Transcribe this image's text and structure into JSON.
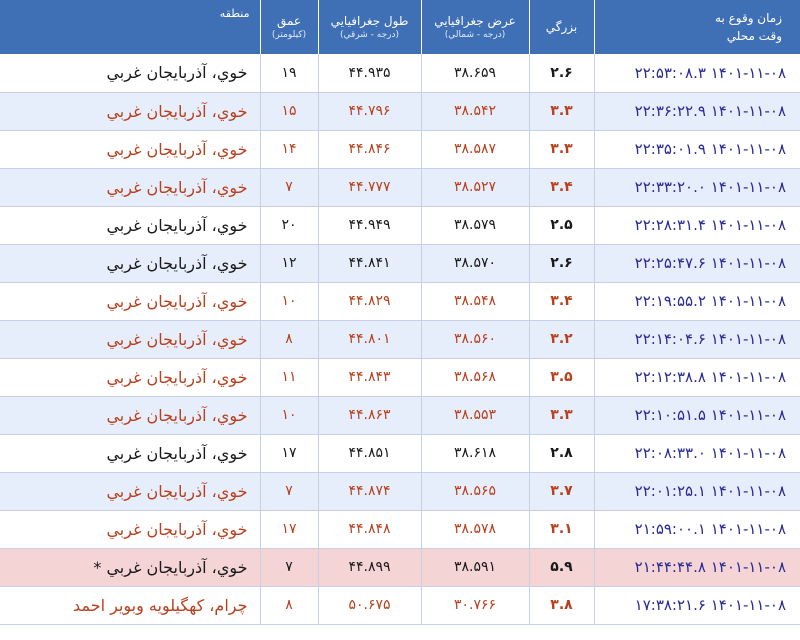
{
  "columns": {
    "time": {
      "main": "زمان وقوع به",
      "main2": "وقت محلي"
    },
    "magnitude": {
      "main": "بزرگي"
    },
    "latitude": {
      "main": "عرض جغرافيايي",
      "sub": "(درجه - شمالي)"
    },
    "longitude": {
      "main": "طول جغرافيايي",
      "sub": "(درجه - شرقي)"
    },
    "depth": {
      "main": "عمق",
      "sub": "(كيلومتر)"
    },
    "region": {
      "main": "منطقه"
    }
  },
  "rows": [
    {
      "time": "۱۴۰۱-۱۱-۰۸ ۲۲:۵۳:۰۸.۳",
      "mag": "۲.۶",
      "lat": "۳۸.۶۵۹",
      "lon": "۴۴.۹۳۵",
      "depth": "۱۹",
      "region": "خوي، آذربايجان غربي"
    },
    {
      "time": "۱۴۰۱-۱۱-۰۸ ۲۲:۳۶:۲۲.۹",
      "mag": "۳.۳",
      "lat": "۳۸.۵۴۲",
      "lon": "۴۴.۷۹۶",
      "depth": "۱۵",
      "region": "خوي، آذربايجان غربي"
    },
    {
      "time": "۱۴۰۱-۱۱-۰۸ ۲۲:۳۵:۰۱.۹",
      "mag": "۳.۳",
      "lat": "۳۸.۵۸۷",
      "lon": "۴۴.۸۴۶",
      "depth": "۱۴",
      "region": "خوي، آذربايجان غربي"
    },
    {
      "time": "۱۴۰۱-۱۱-۰۸ ۲۲:۳۳:۲۰.۰",
      "mag": "۳.۴",
      "lat": "۳۸.۵۲۷",
      "lon": "۴۴.۷۷۷",
      "depth": "۷",
      "region": "خوي، آذربايجان غربي"
    },
    {
      "time": "۱۴۰۱-۱۱-۰۸ ۲۲:۲۸:۳۱.۴",
      "mag": "۲.۵",
      "lat": "۳۸.۵۷۹",
      "lon": "۴۴.۹۴۹",
      "depth": "۲۰",
      "region": "خوي، آذربايجان غربي"
    },
    {
      "time": "۱۴۰۱-۱۱-۰۸ ۲۲:۲۵:۴۷.۶",
      "mag": "۲.۶",
      "lat": "۳۸.۵۷۰",
      "lon": "۴۴.۸۴۱",
      "depth": "۱۲",
      "region": "خوي، آذربايجان غربي"
    },
    {
      "time": "۱۴۰۱-۱۱-۰۸ ۲۲:۱۹:۵۵.۲",
      "mag": "۳.۴",
      "lat": "۳۸.۵۴۸",
      "lon": "۴۴.۸۲۹",
      "depth": "۱۰",
      "region": "خوي، آذربايجان غربي"
    },
    {
      "time": "۱۴۰۱-۱۱-۰۸ ۲۲:۱۴:۰۴.۶",
      "mag": "۳.۲",
      "lat": "۳۸.۵۶۰",
      "lon": "۴۴.۸۰۱",
      "depth": "۸",
      "region": "خوي، آذربايجان غربي"
    },
    {
      "time": "۱۴۰۱-۱۱-۰۸ ۲۲:۱۲:۳۸.۸",
      "mag": "۳.۵",
      "lat": "۳۸.۵۶۸",
      "lon": "۴۴.۸۴۳",
      "depth": "۱۱",
      "region": "خوي، آذربايجان غربي"
    },
    {
      "time": "۱۴۰۱-۱۱-۰۸ ۲۲:۱۰:۵۱.۵",
      "mag": "۳.۳",
      "lat": "۳۸.۵۵۳",
      "lon": "۴۴.۸۶۳",
      "depth": "۱۰",
      "region": "خوي، آذربايجان غربي"
    },
    {
      "time": "۱۴۰۱-۱۱-۰۸ ۲۲:۰۸:۳۳.۰",
      "mag": "۲.۸",
      "lat": "۳۸.۶۱۸",
      "lon": "۴۴.۸۵۱",
      "depth": "۱۷",
      "region": "خوي، آذربايجان غربي"
    },
    {
      "time": "۱۴۰۱-۱۱-۰۸ ۲۲:۰۱:۲۵.۱",
      "mag": "۳.۷",
      "lat": "۳۸.۵۶۵",
      "lon": "۴۴.۸۷۴",
      "depth": "۷",
      "region": "خوي، آذربايجان غربي"
    },
    {
      "time": "۱۴۰۱-۱۱-۰۸ ۲۱:۵۹:۰۰.۱",
      "mag": "۳.۱",
      "lat": "۳۸.۵۷۸",
      "lon": "۴۴.۸۴۸",
      "depth": "۱۷",
      "region": "خوي، آذربايجان غربي"
    },
    {
      "time": "۱۴۰۱-۱۱-۰۸ ۲۱:۴۴:۴۴.۸",
      "mag": "۵.۹",
      "lat": "۳۸.۵۹۱",
      "lon": "۴۴.۸۹۹",
      "depth": "۷",
      "region": "خوي، آذربايجان غربي *"
    },
    {
      "time": "۱۴۰۱-۱۱-۰۸ ۱۷:۳۸:۲۱.۶",
      "mag": "۳.۸",
      "lat": "۳۰.۷۶۶",
      "lon": "۵۰.۶۷۵",
      "depth": "۸",
      "region": "چرام، كهگيلويه وبوير احمد"
    }
  ],
  "colors": {
    "header": "#3f70b6",
    "alt_row": "#e7eefb",
    "highlight_row": "#f4d4d4",
    "time_text": "#2a2a96",
    "red_text": "#b8401e",
    "black_text": "#1a1a1a"
  }
}
